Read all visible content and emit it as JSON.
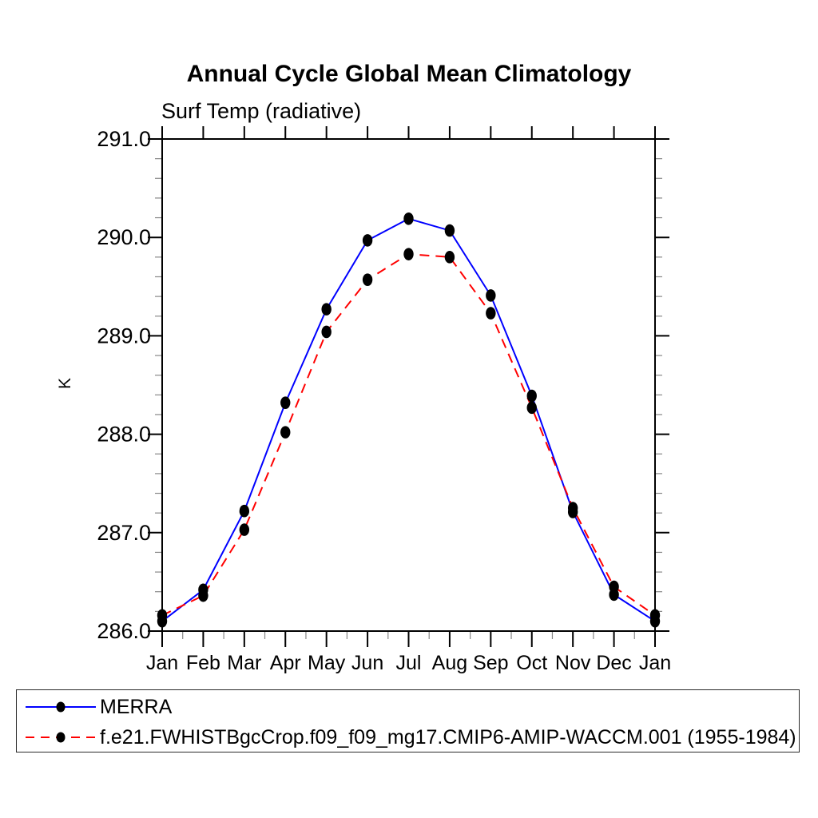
{
  "title": "Annual Cycle Global Mean Climatology",
  "subtitle": "Surf Temp (radiative)",
  "ylabel": "K",
  "colors": {
    "merra_line": "#0000ff",
    "model_line": "#ff0000",
    "marker": "#000000",
    "frame": "#000000",
    "minor_tick": "#888888"
  },
  "legend": {
    "position": "bottom",
    "entries": [
      {
        "label": "MERRA",
        "color": "#0000ff",
        "style": "solid",
        "dasharray": ""
      },
      {
        "label": "f.e21.FWHISTBgcCrop.f09_f09_mg17.CMIP6-AMIP-WACCM.001 (1955-1984)",
        "color": "#ff0000",
        "style": "dashed",
        "dasharray": "11 8"
      }
    ]
  },
  "chart_data": {
    "type": "line",
    "title": "Annual Cycle Global Mean Climatology",
    "subtitle": "Surf Temp (radiative)",
    "xlabel": "",
    "ylabel": "K",
    "categories": [
      "Jan",
      "Feb",
      "Mar",
      "Apr",
      "May",
      "Jun",
      "Jul",
      "Aug",
      "Sep",
      "Oct",
      "Nov",
      "Dec",
      "Jan"
    ],
    "series": [
      {
        "name": "MERRA",
        "color": "#0000ff",
        "style": "solid",
        "marker": "filled-circle",
        "values": [
          286.1,
          286.42,
          287.22,
          288.32,
          289.27,
          289.97,
          290.19,
          290.07,
          289.41,
          288.39,
          287.21,
          286.37,
          286.1
        ]
      },
      {
        "name": "f.e21.FWHISTBgcCrop.f09_f09_mg17.CMIP6-AMIP-WACCM.001 (1955-1984)",
        "color": "#ff0000",
        "style": "dashed",
        "marker": "filled-circle",
        "values": [
          286.16,
          286.36,
          287.03,
          288.02,
          289.04,
          289.57,
          289.83,
          289.8,
          289.23,
          288.27,
          287.25,
          286.45,
          286.16
        ]
      }
    ],
    "ylim": [
      286.0,
      291.0
    ],
    "ytick_labels": [
      "286.0",
      "287.0",
      "288.0",
      "289.0",
      "290.0",
      "291.0"
    ],
    "ytick_major_step": 1.0,
    "ytick_minor_step": 0.2,
    "x_minor_per_interval": 2,
    "grid": "off",
    "legend_position": "bottom"
  }
}
